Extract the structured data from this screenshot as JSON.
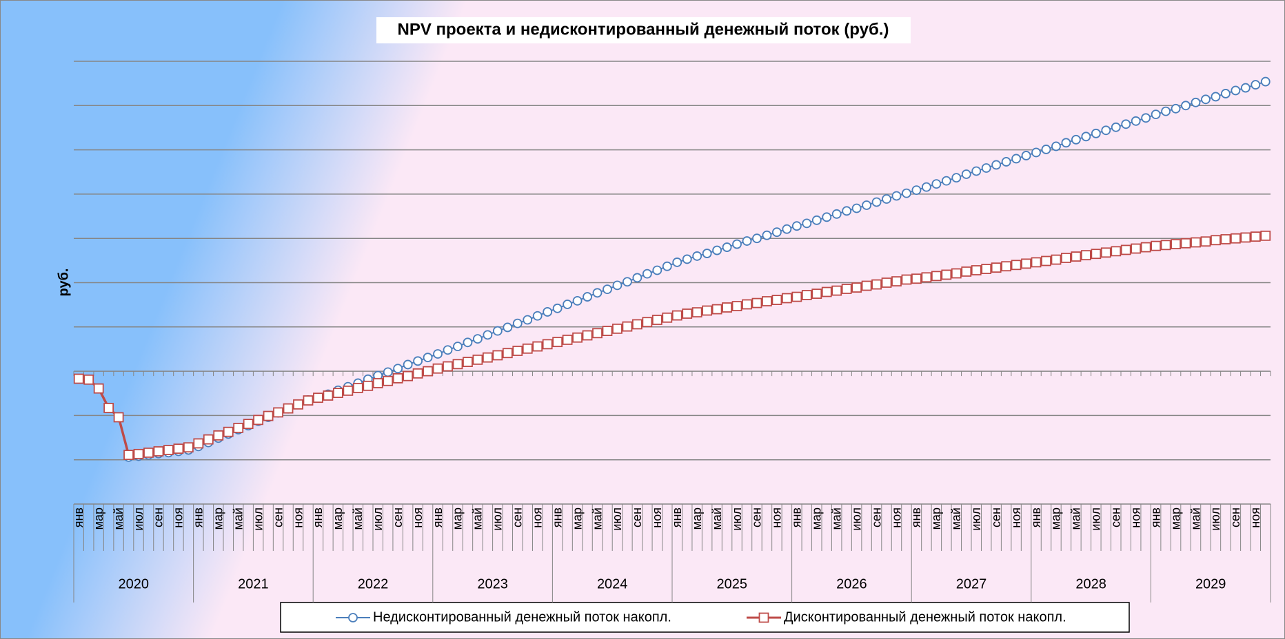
{
  "chart_data": {
    "type": "line",
    "title": "NPV проекта и недисконтированный денежный поток (руб.)",
    "y_label": "руб.",
    "categories": [
      "янв",
      null,
      "мар",
      null,
      "май",
      null,
      "июл",
      null,
      "сен",
      null,
      "ноя",
      null,
      "янв",
      null,
      "мар",
      null,
      "май",
      null,
      "июл",
      null,
      "сен",
      null,
      "ноя",
      null,
      "янв",
      null,
      "мар",
      null,
      "май",
      null,
      "июл",
      null,
      "сен",
      null,
      "ноя",
      null,
      "янв",
      null,
      "мар",
      null,
      "май",
      null,
      "июл",
      null,
      "сен",
      null,
      "ноя",
      null,
      "янв",
      null,
      "мар",
      null,
      "май",
      null,
      "июл",
      null,
      "сен",
      null,
      "ноя",
      null,
      "янв",
      null,
      "мар",
      null,
      "май",
      null,
      "июл",
      null,
      "сен",
      null,
      "ноя",
      null,
      "янв",
      null,
      "мар",
      null,
      "май",
      null,
      "июл",
      null,
      "сен",
      null,
      "ноя",
      null,
      "янв",
      null,
      "мар",
      null,
      "май",
      null,
      "июл",
      null,
      "сен",
      null,
      "ноя",
      null,
      "янв",
      null,
      "мар",
      null,
      "май",
      null,
      "июл",
      null,
      "сен",
      null,
      "ноя",
      null,
      "янв",
      null,
      "мар",
      null,
      "май",
      null,
      "июл",
      null,
      "сен",
      null,
      "ноя",
      null
    ],
    "year_groups": [
      "2020",
      "2021",
      "2022",
      "2023",
      "2024",
      "2025",
      "2026",
      "2027",
      "2028",
      "2029"
    ],
    "series": [
      {
        "name": "Недисконтированный денежный поток накопл.",
        "color": "#4a7ebb",
        "marker": "circle",
        "values": [
          -0.17,
          -0.19,
          -0.39,
          -0.83,
          -1.04,
          -1.94,
          -1.92,
          -1.89,
          -1.86,
          -1.84,
          -1.81,
          -1.78,
          -1.7,
          -1.61,
          -1.51,
          -1.42,
          -1.32,
          -1.23,
          -1.13,
          -1.04,
          -0.94,
          -0.85,
          -0.75,
          -0.65,
          -0.6,
          -0.52,
          -0.43,
          -0.35,
          -0.27,
          -0.18,
          -0.1,
          -0.02,
          0.06,
          0.15,
          0.23,
          0.31,
          0.39,
          0.48,
          0.56,
          0.65,
          0.73,
          0.82,
          0.91,
          0.99,
          1.08,
          1.16,
          1.25,
          1.34,
          1.42,
          1.51,
          1.59,
          1.68,
          1.77,
          1.85,
          1.94,
          2.02,
          2.11,
          2.2,
          2.28,
          2.37,
          2.46,
          2.53,
          2.6,
          2.66,
          2.73,
          2.8,
          2.87,
          2.94,
          3.0,
          3.07,
          3.14,
          3.21,
          3.28,
          3.34,
          3.41,
          3.48,
          3.55,
          3.62,
          3.68,
          3.75,
          3.82,
          3.89,
          3.96,
          4.02,
          4.09,
          4.16,
          4.23,
          4.3,
          4.37,
          4.45,
          4.52,
          4.59,
          4.66,
          4.73,
          4.8,
          4.87,
          4.94,
          5.01,
          5.08,
          5.16,
          5.23,
          5.3,
          5.37,
          5.44,
          5.51,
          5.58,
          5.65,
          5.72,
          5.8,
          5.87,
          5.93,
          6.0,
          6.07,
          6.14,
          6.2,
          6.27,
          6.34,
          6.4,
          6.47,
          6.54
        ]
      },
      {
        "name": "Дисконтированный денежный поток накопл.",
        "color": "#be4b48",
        "marker": "square",
        "values": [
          -0.17,
          -0.19,
          -0.39,
          -0.83,
          -1.04,
          -1.89,
          -1.87,
          -1.84,
          -1.81,
          -1.78,
          -1.75,
          -1.72,
          -1.63,
          -1.54,
          -1.45,
          -1.37,
          -1.28,
          -1.19,
          -1.1,
          -1.01,
          -0.93,
          -0.84,
          -0.75,
          -0.66,
          -0.6,
          -0.55,
          -0.49,
          -0.44,
          -0.38,
          -0.33,
          -0.27,
          -0.22,
          -0.16,
          -0.11,
          -0.05,
          0.0,
          0.06,
          0.11,
          0.16,
          0.21,
          0.26,
          0.31,
          0.36,
          0.41,
          0.46,
          0.51,
          0.56,
          0.61,
          0.66,
          0.71,
          0.76,
          0.81,
          0.86,
          0.91,
          0.96,
          1.01,
          1.06,
          1.11,
          1.16,
          1.21,
          1.26,
          1.3,
          1.33,
          1.37,
          1.4,
          1.44,
          1.47,
          1.51,
          1.54,
          1.58,
          1.61,
          1.65,
          1.68,
          1.72,
          1.75,
          1.79,
          1.82,
          1.86,
          1.89,
          1.93,
          1.96,
          2.0,
          2.03,
          2.07,
          2.09,
          2.12,
          2.15,
          2.18,
          2.21,
          2.25,
          2.28,
          2.31,
          2.34,
          2.37,
          2.4,
          2.43,
          2.46,
          2.49,
          2.52,
          2.56,
          2.59,
          2.62,
          2.65,
          2.68,
          2.71,
          2.74,
          2.77,
          2.8,
          2.83,
          2.85,
          2.87,
          2.89,
          2.91,
          2.93,
          2.96,
          2.98,
          3.0,
          3.02,
          3.04,
          3.06
        ]
      }
    ],
    "ylim": [
      -3,
      7
    ],
    "yticks": [
      -3,
      -2,
      -1,
      0,
      1,
      2,
      3,
      4,
      5,
      6,
      7
    ],
    "grid": true,
    "legend": "bottom"
  }
}
